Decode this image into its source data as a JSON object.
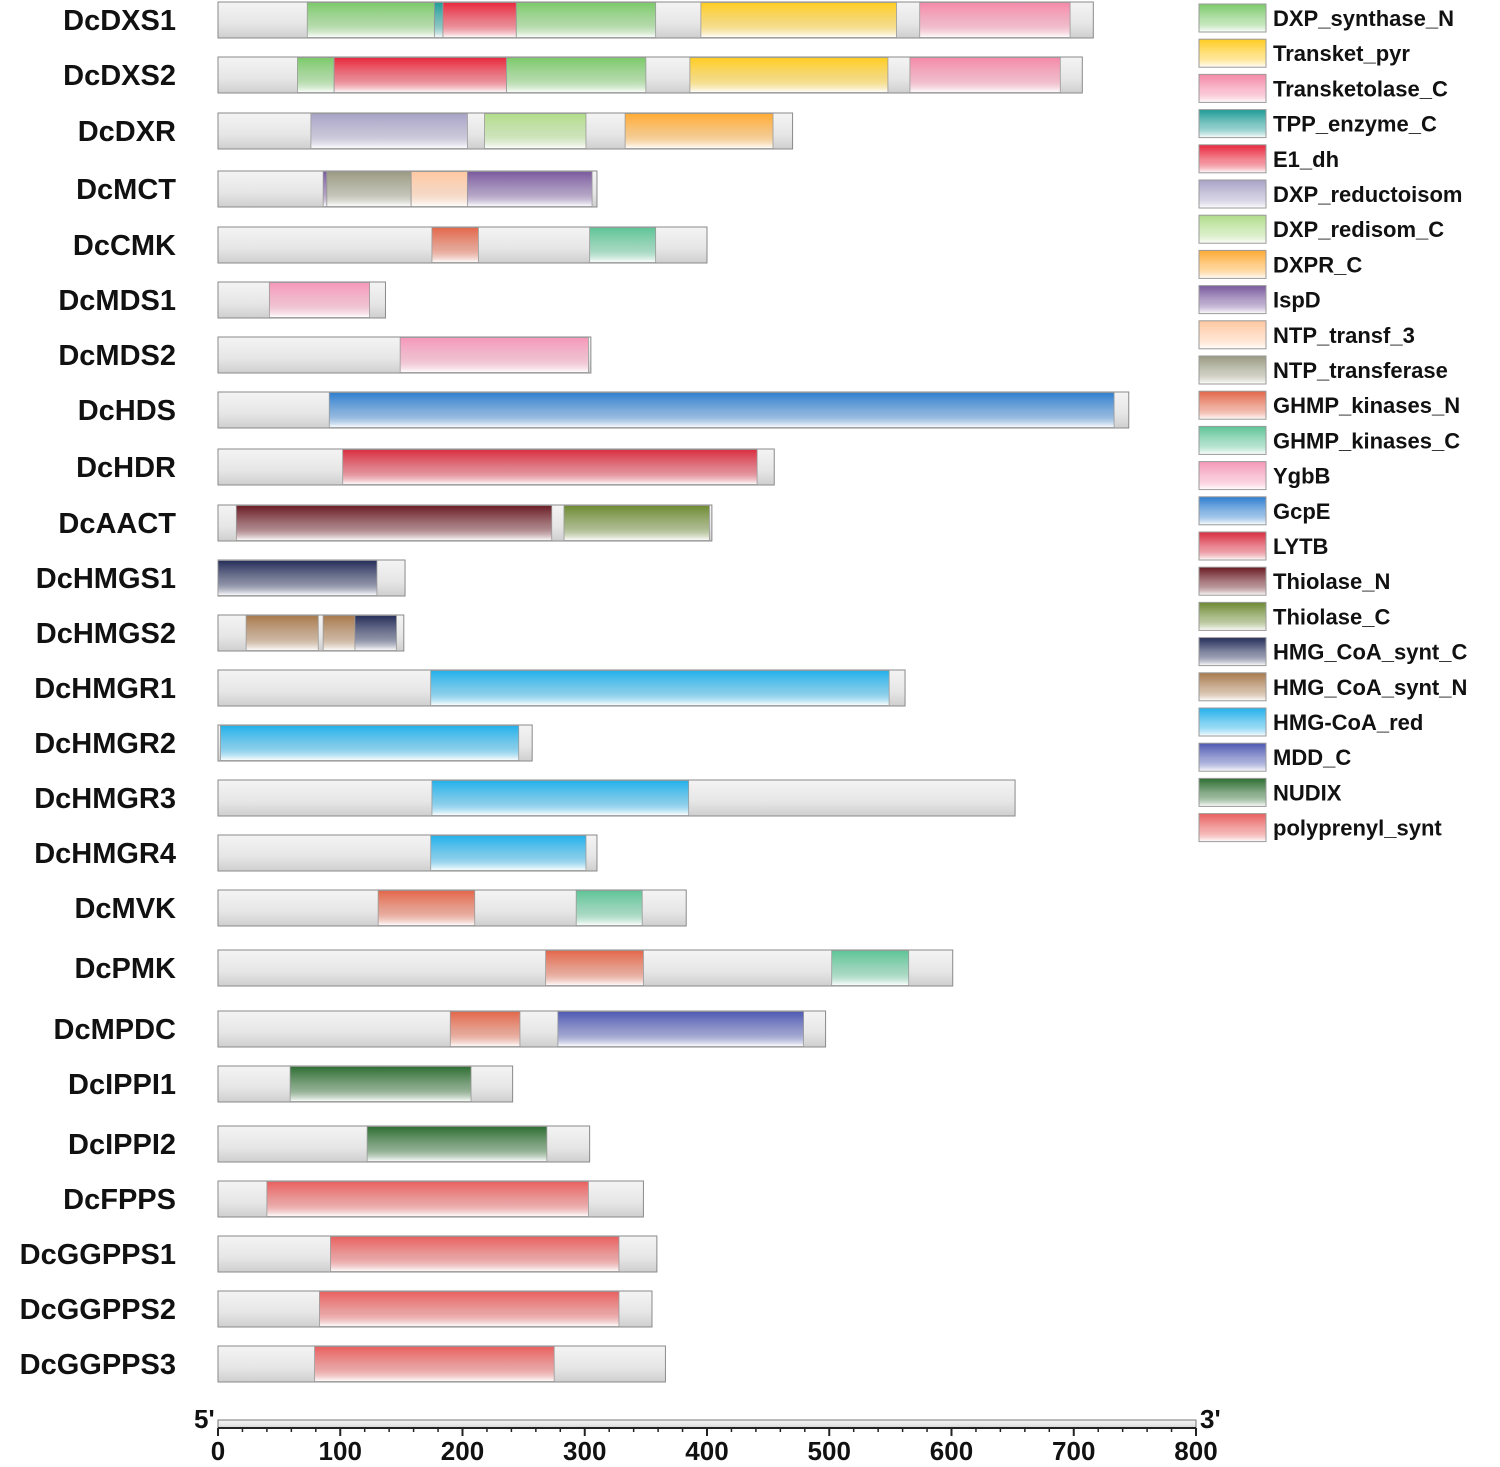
{
  "axis": {
    "start_label": "5'",
    "end_label": "3'",
    "min": 0,
    "max": 800,
    "ticks": [
      "0",
      "100",
      "200",
      "300",
      "400",
      "500",
      "600",
      "700",
      "800"
    ]
  },
  "domain_types": [
    {
      "name": "DXP_synthase_N",
      "color": "#7cc96a"
    },
    {
      "name": "Transket_pyr",
      "color": "#ffcc22"
    },
    {
      "name": "Transketolase_C",
      "color": "#f589a8"
    },
    {
      "name": "TPP_enzyme_C",
      "color": "#1f9c96"
    },
    {
      "name": "E1_dh",
      "color": "#e8283d"
    },
    {
      "name": "DXP_reductoisom",
      "color": "#a7a2c6"
    },
    {
      "name": "DXP_redisom_C",
      "color": "#b0dc8a"
    },
    {
      "name": "DXPR_C",
      "color": "#ffaa33"
    },
    {
      "name": "IspD",
      "color": "#7a5a9e"
    },
    {
      "name": "NTP_transf_3",
      "color": "#ffc7a0"
    },
    {
      "name": "NTP_transferase",
      "color": "#9a9a82"
    },
    {
      "name": "GHMP_kinases_N",
      "color": "#e2674a"
    },
    {
      "name": "GHMP_kinases_C",
      "color": "#5ec496"
    },
    {
      "name": "YgbB",
      "color": "#f598b8"
    },
    {
      "name": "GcpE",
      "color": "#2f7fcf"
    },
    {
      "name": "LYTB",
      "color": "#d82d40"
    },
    {
      "name": "Thiolase_N",
      "color": "#6a1c24"
    },
    {
      "name": "Thiolase_C",
      "color": "#6d8a32"
    },
    {
      "name": "HMG_CoA_synt_C",
      "color": "#252e5a"
    },
    {
      "name": "HMG_CoA_synt_N",
      "color": "#a8794c"
    },
    {
      "name": "HMG-CoA_red",
      "color": "#22b0ea"
    },
    {
      "name": "MDD_C",
      "color": "#4e59b2"
    },
    {
      "name": "NUDIX",
      "color": "#2e6e32"
    },
    {
      "name": "polyprenyl_synt",
      "color": "#e8605f"
    }
  ],
  "proteins": [
    {
      "name": "DcDXS1",
      "length": 716,
      "domains": [
        [
          "DXP_synthase_N",
          73,
          177
        ],
        [
          "TPP_enzyme_C",
          177,
          184
        ],
        [
          "E1_dh",
          184,
          244
        ],
        [
          "DXP_synthase_N",
          244,
          358
        ],
        [
          "Transket_pyr",
          395,
          555
        ],
        [
          "Transketolase_C",
          574,
          697
        ]
      ]
    },
    {
      "name": "DcDXS2",
      "length": 707,
      "domains": [
        [
          "DXP_synthase_N",
          65,
          95
        ],
        [
          "E1_dh",
          95,
          236
        ],
        [
          "DXP_synthase_N",
          236,
          350
        ],
        [
          "Transket_pyr",
          386,
          548
        ],
        [
          "Transketolase_C",
          566,
          689
        ]
      ]
    },
    {
      "name": "DcDXR",
      "length": 470,
      "domains": [
        [
          "DXP_reductoisom",
          76,
          204
        ],
        [
          "DXP_redisom_C",
          218,
          301
        ],
        [
          "DXPR_C",
          333,
          454
        ]
      ]
    },
    {
      "name": "DcMCT",
      "length": 310,
      "domains": [
        [
          "IspD",
          86,
          89
        ],
        [
          "NTP_transferase",
          89,
          158
        ],
        [
          "NTP_transf_3",
          158,
          204
        ],
        [
          "IspD",
          204,
          306
        ]
      ]
    },
    {
      "name": "DcCMK",
      "length": 400,
      "domains": [
        [
          "GHMP_kinases_N",
          175,
          213
        ],
        [
          "GHMP_kinases_C",
          304,
          358
        ]
      ]
    },
    {
      "name": "DcMDS1",
      "length": 137,
      "domains": [
        [
          "YgbB",
          42,
          124
        ]
      ]
    },
    {
      "name": "DcMDS2",
      "length": 305,
      "domains": [
        [
          "YgbB",
          149,
          303
        ]
      ]
    },
    {
      "name": "DcHDS",
      "length": 745,
      "domains": [
        [
          "GcpE",
          91,
          733
        ]
      ]
    },
    {
      "name": "DcHDR",
      "length": 455,
      "domains": [
        [
          "LYTB",
          102,
          441
        ]
      ]
    },
    {
      "name": "DcAACT",
      "length": 404,
      "domains": [
        [
          "Thiolase_N",
          15,
          273
        ],
        [
          "Thiolase_C",
          283,
          402
        ]
      ]
    },
    {
      "name": "DcHMGS1",
      "length": 153,
      "domains": [
        [
          "HMG_CoA_synt_C",
          0,
          130
        ]
      ]
    },
    {
      "name": "DcHMGS2",
      "length": 152,
      "domains": [
        [
          "HMG_CoA_synt_N",
          23,
          82
        ],
        [
          "HMG_CoA_synt_N",
          86,
          112
        ],
        [
          "HMG_CoA_synt_C",
          112,
          146
        ]
      ]
    },
    {
      "name": "DcHMGR1",
      "length": 562,
      "domains": [
        [
          "HMG-CoA_red",
          174,
          549
        ]
      ]
    },
    {
      "name": "DcHMGR2",
      "length": 257,
      "domains": [
        [
          "HMG-CoA_red",
          2,
          246
        ]
      ]
    },
    {
      "name": "DcHMGR3",
      "length": 652,
      "domains": [
        [
          "HMG-CoA_red",
          175,
          385
        ]
      ]
    },
    {
      "name": "DcHMGR4",
      "length": 310,
      "domains": [
        [
          "HMG-CoA_red",
          174,
          301
        ]
      ]
    },
    {
      "name": "DcMVK",
      "length": 383,
      "domains": [
        [
          "GHMP_kinases_N",
          131,
          210
        ],
        [
          "GHMP_kinases_C",
          293,
          347
        ]
      ]
    },
    {
      "name": "DcPMK",
      "length": 601,
      "domains": [
        [
          "GHMP_kinases_N",
          268,
          348
        ],
        [
          "GHMP_kinases_C",
          502,
          565
        ]
      ]
    },
    {
      "name": "DcMPDC",
      "length": 497,
      "domains": [
        [
          "GHMP_kinases_N",
          190,
          247
        ],
        [
          "MDD_C",
          278,
          479
        ]
      ]
    },
    {
      "name": "DcIPPI1",
      "length": 241,
      "domains": [
        [
          "NUDIX",
          59,
          207
        ]
      ]
    },
    {
      "name": "DcIPPI2",
      "length": 304,
      "domains": [
        [
          "NUDIX",
          122,
          269
        ]
      ]
    },
    {
      "name": "DcFPPS",
      "length": 348,
      "domains": [
        [
          "polyprenyl_synt",
          40,
          303
        ]
      ]
    },
    {
      "name": "DcGGPPS1",
      "length": 359,
      "domains": [
        [
          "polyprenyl_synt",
          92,
          328
        ]
      ]
    },
    {
      "name": "DcGGPPS2",
      "length": 355,
      "domains": [
        [
          "polyprenyl_synt",
          83,
          328
        ]
      ]
    },
    {
      "name": "DcGGPPS3",
      "length": 366,
      "domains": [
        [
          "polyprenyl_synt",
          79,
          275
        ]
      ]
    }
  ]
}
